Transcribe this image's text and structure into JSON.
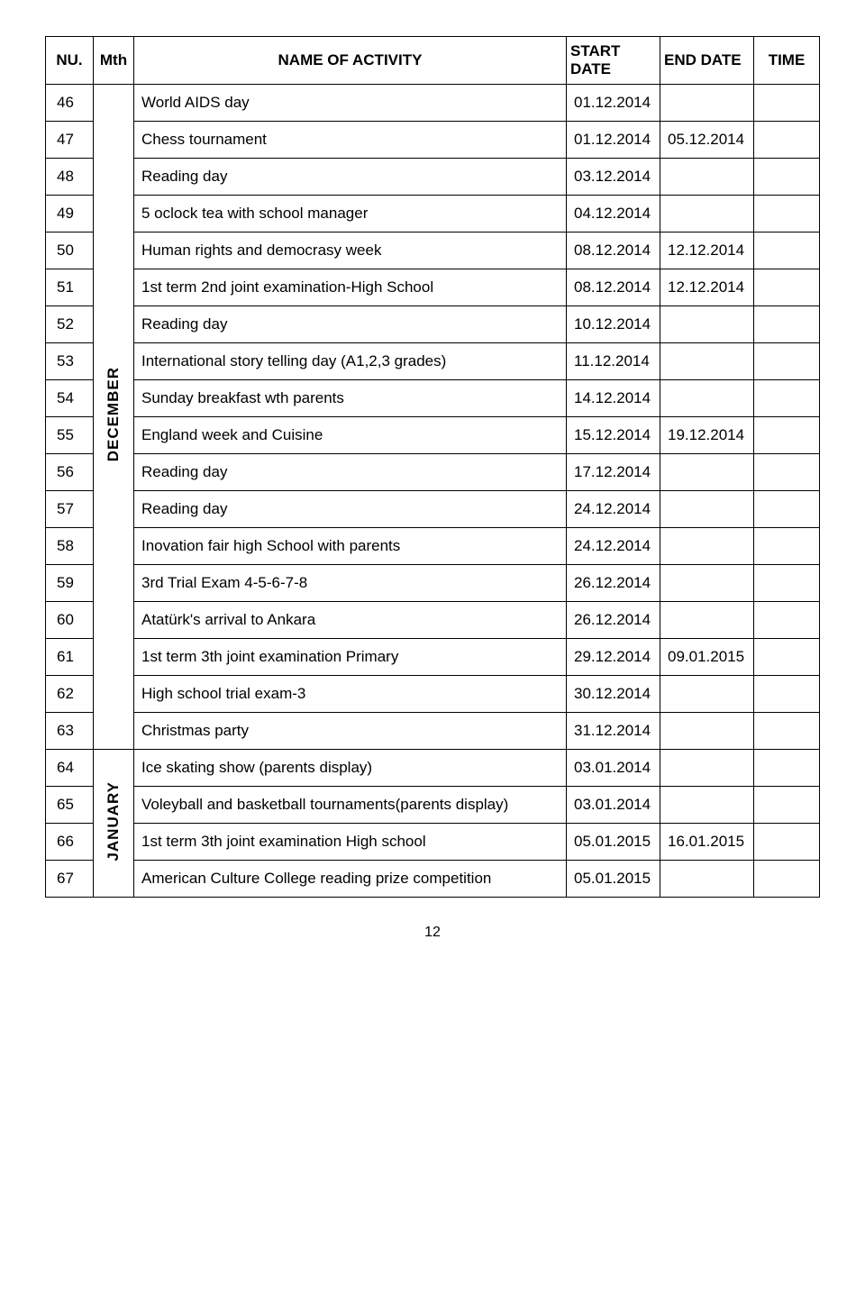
{
  "header": {
    "nu": "NU.",
    "mth": "Mth",
    "name": "NAME OF ACTIVITY",
    "start": "START DATE",
    "end": "END DATE",
    "time": "TIME"
  },
  "months": {
    "december": "DECEMBER",
    "january": "JANUARY"
  },
  "rows": [
    {
      "nu": "46",
      "name": "World AIDS day",
      "start": "01.12.2014",
      "end": "",
      "time": ""
    },
    {
      "nu": "47",
      "name": "Chess tournament",
      "start": "01.12.2014",
      "end": "05.12.2014",
      "time": ""
    },
    {
      "nu": "48",
      "name": "Reading day",
      "start": "03.12.2014",
      "end": "",
      "time": ""
    },
    {
      "nu": "49",
      "name": "5 oclock tea with school manager",
      "start": "04.12.2014",
      "end": "",
      "time": ""
    },
    {
      "nu": "50",
      "name": "Human rights and democrasy week",
      "start": "08.12.2014",
      "end": "12.12.2014",
      "time": ""
    },
    {
      "nu": "51",
      "name": "1st term 2nd joint examination-High School",
      "start": "08.12.2014",
      "end": "12.12.2014",
      "time": ""
    },
    {
      "nu": "52",
      "name": "Reading day",
      "start": "10.12.2014",
      "end": "",
      "time": ""
    },
    {
      "nu": "53",
      "name": "International story telling day (A1,2,3 grades)",
      "start": "11.12.2014",
      "end": "",
      "time": ""
    },
    {
      "nu": "54",
      "name": "Sunday breakfast wth parents",
      "start": "14.12.2014",
      "end": "",
      "time": ""
    },
    {
      "nu": "55",
      "name": "England week and Cuisine",
      "start": "15.12.2014",
      "end": "19.12.2014",
      "time": ""
    },
    {
      "nu": "56",
      "name": "Reading day",
      "start": "17.12.2014",
      "end": "",
      "time": ""
    },
    {
      "nu": "57",
      "name": "Reading day",
      "start": "24.12.2014",
      "end": "",
      "time": ""
    },
    {
      "nu": "58",
      "name": "Inovation fair high School with parents",
      "start": "24.12.2014",
      "end": "",
      "time": ""
    },
    {
      "nu": "59",
      "name": "3rd Trial Exam  4-5-6-7-8",
      "start": "26.12.2014",
      "end": "",
      "time": ""
    },
    {
      "nu": "60",
      "name": "Atatürk's arrival to Ankara",
      "start": "26.12.2014",
      "end": "",
      "time": ""
    },
    {
      "nu": "61",
      "name": "1st term 3th joint examination Primary",
      "start": "29.12.2014",
      "end": "09.01.2015",
      "time": ""
    },
    {
      "nu": "62",
      "name": "High school trial exam-3",
      "start": "30.12.2014",
      "end": "",
      "time": ""
    },
    {
      "nu": "63",
      "name": "Christmas party",
      "start": "31.12.2014",
      "end": "",
      "time": ""
    },
    {
      "nu": "64",
      "name": "Ice skating show (parents display)",
      "start": "03.01.2014",
      "end": "",
      "time": ""
    },
    {
      "nu": "65",
      "name": "Voleyball and basketball tournaments(parents display)",
      "start": "03.01.2014",
      "end": "",
      "time": ""
    },
    {
      "nu": "66",
      "name": "1st term 3th joint examination High school",
      "start": "05.01.2015",
      "end": "16.01.2015",
      "time": ""
    },
    {
      "nu": "67",
      "name": "American Culture College reading prize competition",
      "start": "05.01.2015",
      "end": "",
      "time": ""
    }
  ],
  "page_number": "12"
}
